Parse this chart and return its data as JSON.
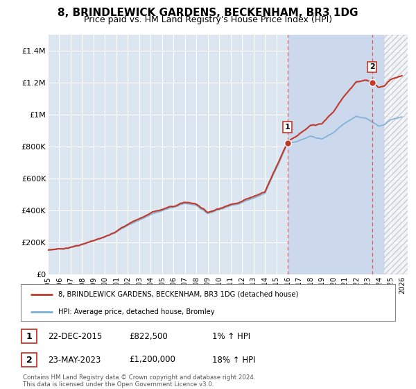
{
  "title": "8, BRINDLEWICK GARDENS, BECKENHAM, BR3 1DG",
  "subtitle": "Price paid vs. HM Land Registry's House Price Index (HPI)",
  "title_fontsize": 11,
  "subtitle_fontsize": 9,
  "background_color": "#ffffff",
  "plot_bg_color": "#dce6f1",
  "grid_color": "#ffffff",
  "highlight_bg_color": "#ccd9ed",
  "ylim": [
    0,
    1500000
  ],
  "xlim_start": 1995.0,
  "xlim_end": 2026.5,
  "yticks": [
    0,
    200000,
    400000,
    600000,
    800000,
    1000000,
    1200000,
    1400000
  ],
  "ytick_labels": [
    "£0",
    "£200K",
    "£400K",
    "£600K",
    "£800K",
    "£1M",
    "£1.2M",
    "£1.4M"
  ],
  "xtick_years": [
    1995,
    1996,
    1997,
    1998,
    1999,
    2000,
    2001,
    2002,
    2003,
    2004,
    2005,
    2006,
    2007,
    2008,
    2009,
    2010,
    2011,
    2012,
    2013,
    2014,
    2015,
    2016,
    2017,
    2018,
    2019,
    2020,
    2021,
    2022,
    2023,
    2024,
    2025,
    2026
  ],
  "hpi_line_color": "#7bafd4",
  "price_line_color": "#c0392b",
  "sale1_x": 2015.97,
  "sale1_y": 822500,
  "sale1_label": "1",
  "sale1_date": "22-DEC-2015",
  "sale1_price": "£822,500",
  "sale1_hpi": "1% ↑ HPI",
  "sale2_x": 2023.39,
  "sale2_y": 1200000,
  "sale2_label": "2",
  "sale2_date": "23-MAY-2023",
  "sale2_price": "£1,200,000",
  "sale2_hpi": "18% ↑ HPI",
  "vline1_x": 2015.97,
  "vline2_x": 2023.39,
  "vline_color": "#e05555",
  "future_hatch_start": 2024.42,
  "legend_line1": "8, BRINDLEWICK GARDENS, BECKENHAM, BR3 1DG (detached house)",
  "legend_line2": "HPI: Average price, detached house, Bromley",
  "footer_text": "Contains HM Land Registry data © Crown copyright and database right 2024.\nThis data is licensed under the Open Government Licence v3.0.",
  "marker_color": "#c0392b",
  "marker_border": "#ffffff",
  "box_edge_color": "#c0392b"
}
